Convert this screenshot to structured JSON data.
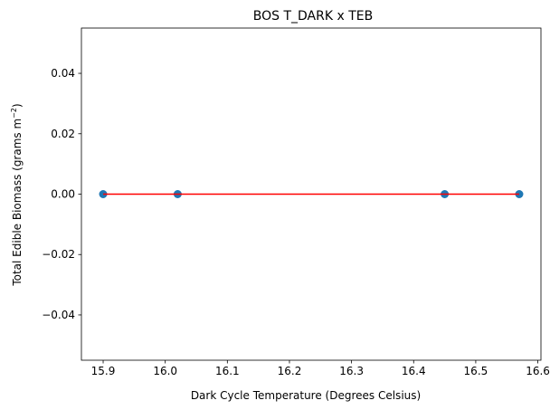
{
  "chart_data": {
    "type": "scatter",
    "title": "BOS T_DARK x TEB",
    "xlabel": "Dark Cycle Temperature (Degrees Celsius)",
    "ylabel_main": "Total Edible Biomass (grams m",
    "ylabel_sup": "−2",
    "ylabel_end": ")",
    "xlim": [
      15.865,
      16.605
    ],
    "ylim": [
      -0.055,
      0.055
    ],
    "xticks": [
      15.9,
      16.0,
      16.1,
      16.2,
      16.3,
      16.4,
      16.5,
      16.6
    ],
    "xtick_labels": [
      "15.9",
      "16.0",
      "16.1",
      "16.2",
      "16.3",
      "16.4",
      "16.5",
      "16.6"
    ],
    "yticks": [
      -0.04,
      -0.02,
      0.0,
      0.02,
      0.04
    ],
    "ytick_labels": [
      "−0.04",
      "−0.02",
      "0.00",
      "0.02",
      "0.04"
    ],
    "grid": false,
    "series": [
      {
        "kind": "scatter",
        "color": "#1f77b4",
        "x": [
          15.9,
          16.02,
          16.45,
          16.57
        ],
        "y": [
          0,
          0,
          0,
          0
        ]
      },
      {
        "kind": "line",
        "color": "#ff0000",
        "x": [
          15.9,
          16.57
        ],
        "y": [
          0,
          0
        ]
      }
    ]
  }
}
